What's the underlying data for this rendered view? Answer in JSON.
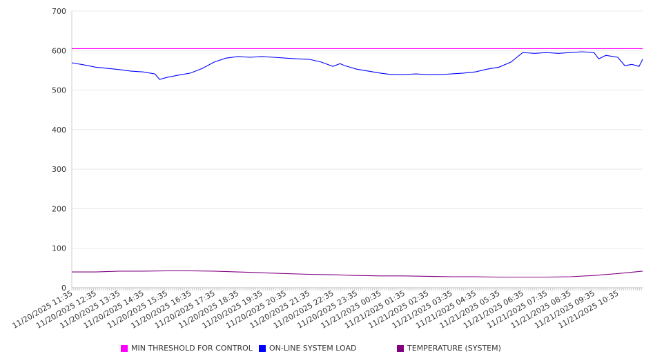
{
  "chart_data": {
    "type": "line",
    "title": "",
    "xlabel": "",
    "ylabel": "",
    "ylim": [
      0,
      700
    ],
    "yticks": [
      0,
      100,
      200,
      300,
      400,
      500,
      600,
      700
    ],
    "xlim_hours": [
      0,
      24.05
    ],
    "xtick_labels": [
      "11/20/2025 11:35",
      "11/20/2025 12:35",
      "11/20/2025 13:35",
      "11/20/2025 14:35",
      "11/20/2025 15:35",
      "11/20/2025 16:35",
      "11/20/2025 17:35",
      "11/20/2025 18:35",
      "11/20/2025 19:35",
      "11/20/2025 20:35",
      "11/20/2025 21:35",
      "11/20/2025 22:35",
      "11/20/2025 23:35",
      "11/21/2025 00:35",
      "11/21/2025 01:35",
      "11/21/2025 02:35",
      "11/21/2025 03:35",
      "11/21/2025 04:35",
      "11/21/2025 05:35",
      "11/21/2025 06:35",
      "11/21/2025 07:35",
      "11/21/2025 08:35",
      "11/21/2025 09:35",
      "11/21/2025 10:35"
    ],
    "grid": true,
    "legend_position": "bottom",
    "series": [
      {
        "name": "MIN THRESHOLD FOR CONTROL",
        "color": "#ff00ff",
        "x": [
          0,
          24.05
        ],
        "y": [
          605,
          605
        ]
      },
      {
        "name": "ON-LINE SYSTEM LOAD",
        "color": "#0000ff",
        "x": [
          0,
          0.5,
          1,
          1.5,
          2,
          2.5,
          3,
          3.5,
          3.7,
          4,
          4.5,
          5,
          5.5,
          6,
          6.5,
          7,
          7.5,
          8,
          8.5,
          9,
          9.5,
          10,
          10.5,
          11,
          11.3,
          11.5,
          12,
          12.5,
          13,
          13.5,
          14,
          14.5,
          15,
          15.5,
          16,
          16.5,
          17,
          17.5,
          18,
          18.5,
          19,
          19.5,
          20,
          20.5,
          21,
          21.5,
          22,
          22.2,
          22.5,
          23,
          23.3,
          23.6,
          23.9,
          24.05
        ],
        "y": [
          569,
          564,
          558,
          555,
          552,
          548,
          546,
          541,
          527,
          532,
          538,
          543,
          555,
          571,
          581,
          585,
          583,
          585,
          583,
          581,
          579,
          578,
          571,
          560,
          567,
          562,
          553,
          548,
          543,
          539,
          539,
          541,
          539,
          539,
          541,
          543,
          546,
          553,
          558,
          571,
          595,
          593,
          595,
          593,
          595,
          597,
          595,
          579,
          588,
          583,
          562,
          565,
          560,
          578
        ]
      },
      {
        "name": "TEMPERATURE (SYSTEM)",
        "color": "#800080",
        "x": [
          0,
          1,
          2,
          3,
          4,
          5,
          6,
          7,
          8,
          9,
          10,
          11,
          12,
          13,
          14,
          15,
          16,
          17,
          18,
          19,
          20,
          21,
          22,
          23,
          24.05
        ],
        "y": [
          40,
          40,
          42,
          42,
          43,
          43,
          42,
          40,
          38,
          36,
          34,
          33,
          31,
          30,
          30,
          29,
          28,
          28,
          27,
          27,
          27,
          28,
          31,
          36,
          42
        ]
      }
    ]
  }
}
